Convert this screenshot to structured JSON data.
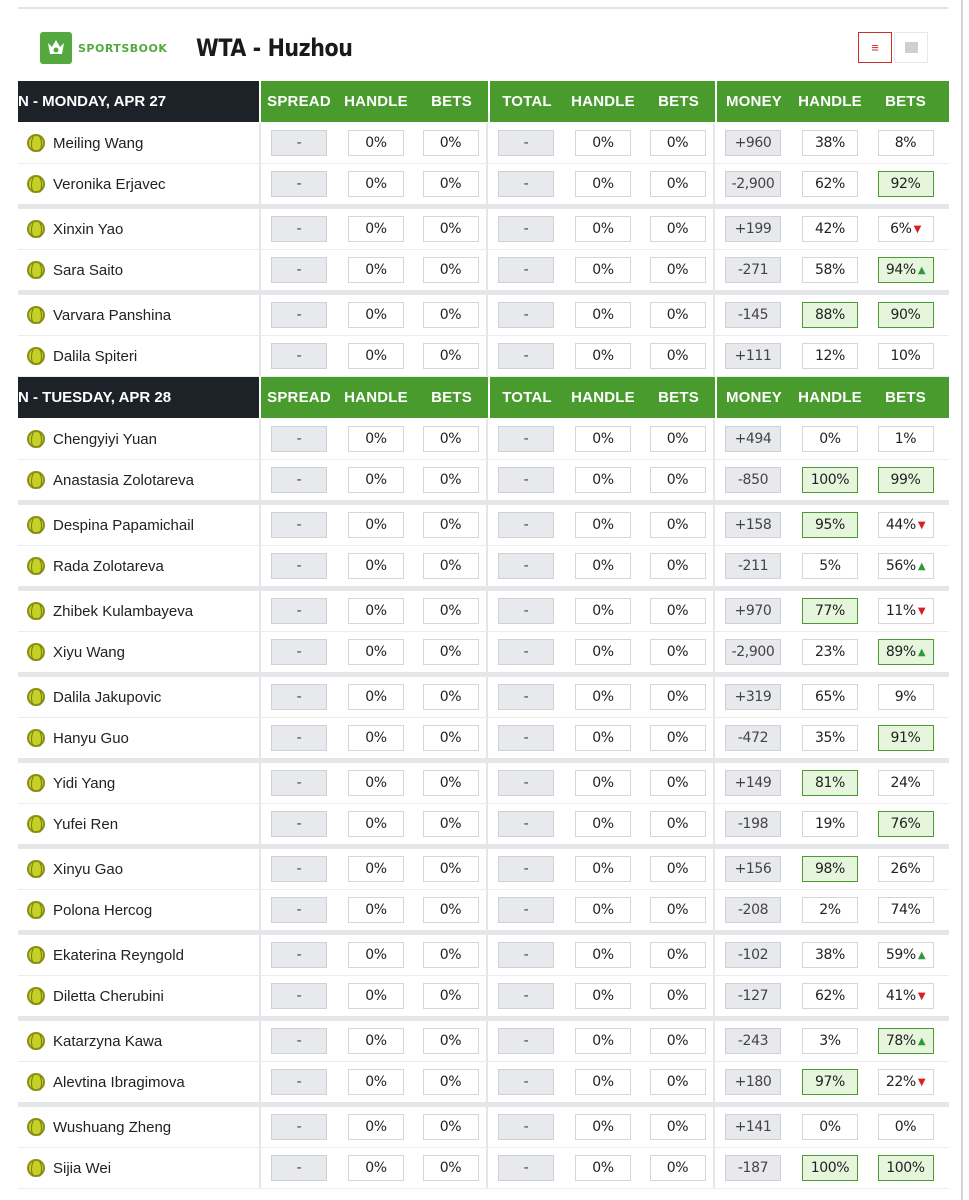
{
  "header": {
    "logo_text": "SPORTSBOOK",
    "title": "WTA - Huzhou",
    "view_list_icon": "list-icon",
    "view_grid_icon": "grid-icon"
  },
  "columns": [
    "SPREAD",
    "HANDLE",
    "BETS",
    "TOTAL",
    "HANDLE",
    "BETS",
    "MONEY",
    "HANDLE",
    "BETS"
  ],
  "sections": [
    {
      "date": "N - MONDAY, APR 27",
      "matches": [
        [
          {
            "name": "Meiling Wang",
            "money": "+960",
            "handle": "38%",
            "bets": "8%",
            "handle_hl": false,
            "bets_hl": false,
            "arrow": ""
          },
          {
            "name": "Veronika Erjavec",
            "money": "-2,900",
            "handle": "62%",
            "bets": "92%",
            "handle_hl": false,
            "bets_hl": true,
            "arrow": ""
          }
        ],
        [
          {
            "name": "Xinxin Yao",
            "money": "+199",
            "handle": "42%",
            "bets": "6%",
            "handle_hl": false,
            "bets_hl": false,
            "arrow": "down"
          },
          {
            "name": "Sara Saito",
            "money": "-271",
            "handle": "58%",
            "bets": "94%",
            "handle_hl": false,
            "bets_hl": true,
            "arrow": "up"
          }
        ],
        [
          {
            "name": "Varvara Panshina",
            "money": "-145",
            "handle": "88%",
            "bets": "90%",
            "handle_hl": true,
            "bets_hl": true,
            "arrow": ""
          },
          {
            "name": "Dalila Spiteri",
            "money": "+111",
            "handle": "12%",
            "bets": "10%",
            "handle_hl": false,
            "bets_hl": false,
            "arrow": ""
          }
        ]
      ]
    },
    {
      "date": "N - TUESDAY, APR 28",
      "matches": [
        [
          {
            "name": "Chengyiyi Yuan",
            "money": "+494",
            "handle": "0%",
            "bets": "1%",
            "handle_hl": false,
            "bets_hl": false,
            "arrow": ""
          },
          {
            "name": "Anastasia Zolotareva",
            "money": "-850",
            "handle": "100%",
            "bets": "99%",
            "handle_hl": true,
            "bets_hl": true,
            "arrow": ""
          }
        ],
        [
          {
            "name": "Despina Papamichail",
            "money": "+158",
            "handle": "95%",
            "bets": "44%",
            "handle_hl": true,
            "bets_hl": false,
            "arrow": "down"
          },
          {
            "name": "Rada Zolotareva",
            "money": "-211",
            "handle": "5%",
            "bets": "56%",
            "handle_hl": false,
            "bets_hl": false,
            "arrow": "up"
          }
        ],
        [
          {
            "name": "Zhibek Kulambayeva",
            "money": "+970",
            "handle": "77%",
            "bets": "11%",
            "handle_hl": true,
            "bets_hl": false,
            "arrow": "down"
          },
          {
            "name": "Xiyu Wang",
            "money": "-2,900",
            "handle": "23%",
            "bets": "89%",
            "handle_hl": false,
            "bets_hl": true,
            "arrow": "up"
          }
        ],
        [
          {
            "name": "Dalila Jakupovic",
            "money": "+319",
            "handle": "65%",
            "bets": "9%",
            "handle_hl": false,
            "bets_hl": false,
            "arrow": ""
          },
          {
            "name": "Hanyu Guo",
            "money": "-472",
            "handle": "35%",
            "bets": "91%",
            "handle_hl": false,
            "bets_hl": true,
            "arrow": ""
          }
        ],
        [
          {
            "name": "Yidi Yang",
            "money": "+149",
            "handle": "81%",
            "bets": "24%",
            "handle_hl": true,
            "bets_hl": false,
            "arrow": ""
          },
          {
            "name": "Yufei Ren",
            "money": "-198",
            "handle": "19%",
            "bets": "76%",
            "handle_hl": false,
            "bets_hl": true,
            "arrow": ""
          }
        ],
        [
          {
            "name": "Xinyu Gao",
            "money": "+156",
            "handle": "98%",
            "bets": "26%",
            "handle_hl": true,
            "bets_hl": false,
            "arrow": ""
          },
          {
            "name": "Polona Hercog",
            "money": "-208",
            "handle": "2%",
            "bets": "74%",
            "handle_hl": false,
            "bets_hl": false,
            "arrow": ""
          }
        ],
        [
          {
            "name": "Ekaterina Reyngold",
            "money": "-102",
            "handle": "38%",
            "bets": "59%",
            "handle_hl": false,
            "bets_hl": false,
            "arrow": "up"
          },
          {
            "name": "Diletta Cherubini",
            "money": "-127",
            "handle": "62%",
            "bets": "41%",
            "handle_hl": false,
            "bets_hl": false,
            "arrow": "down"
          }
        ],
        [
          {
            "name": "Katarzyna Kawa",
            "money": "-243",
            "handle": "3%",
            "bets": "78%",
            "handle_hl": false,
            "bets_hl": true,
            "arrow": "up"
          },
          {
            "name": "Alevtina Ibragimova",
            "money": "+180",
            "handle": "97%",
            "bets": "22%",
            "handle_hl": true,
            "bets_hl": false,
            "arrow": "down"
          }
        ],
        [
          {
            "name": "Wushuang Zheng",
            "money": "+141",
            "handle": "0%",
            "bets": "0%",
            "handle_hl": false,
            "bets_hl": false,
            "arrow": ""
          },
          {
            "name": "Sijia Wei",
            "money": "-187",
            "handle": "100%",
            "bets": "100%",
            "handle_hl": true,
            "bets_hl": true,
            "arrow": ""
          }
        ]
      ]
    }
  ],
  "placeholders": {
    "spread": "-",
    "total": "-",
    "zero": "0%"
  },
  "colors": {
    "brand_green": "#53a93f",
    "header_green": "#499b2e",
    "date_bg": "#1d2128",
    "highlight_border": "#4d9a35",
    "arrow_up": "#2e9a3a",
    "arrow_down": "#d92020"
  }
}
